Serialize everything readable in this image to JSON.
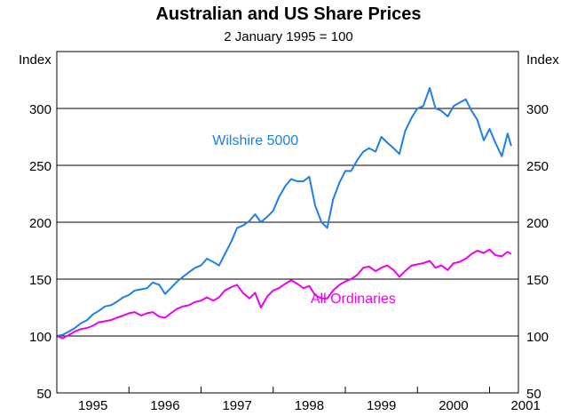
{
  "chart_data": {
    "type": "line",
    "title": "Australian and US Share Prices",
    "subtitle": "2 January 1995 = 100",
    "ylabel_left": "Index",
    "ylabel_right": "Index",
    "ylim": [
      50,
      350
    ],
    "yticks": [
      50,
      100,
      150,
      200,
      250,
      300
    ],
    "ytick_labels": [
      "50",
      "100",
      "150",
      "200",
      "250",
      "300"
    ],
    "x_range": [
      1995.0,
      2001.4
    ],
    "x_category_labels": [
      "1995",
      "1996",
      "1997",
      "1998",
      "1999",
      "2000",
      "2001"
    ],
    "grid": "horizontal",
    "series": [
      {
        "name": "Wilshire 5000",
        "color": "#1f7fe6",
        "points": [
          [
            1995.0,
            100
          ],
          [
            1995.08,
            101
          ],
          [
            1995.17,
            104
          ],
          [
            1995.25,
            107
          ],
          [
            1995.33,
            111
          ],
          [
            1995.42,
            114
          ],
          [
            1995.5,
            119
          ],
          [
            1995.58,
            122
          ],
          [
            1995.67,
            126
          ],
          [
            1995.75,
            127
          ],
          [
            1995.83,
            130
          ],
          [
            1995.92,
            134
          ],
          [
            1996.0,
            136
          ],
          [
            1996.08,
            140
          ],
          [
            1996.17,
            141
          ],
          [
            1996.25,
            142
          ],
          [
            1996.33,
            147
          ],
          [
            1996.42,
            145
          ],
          [
            1996.5,
            137
          ],
          [
            1996.58,
            142
          ],
          [
            1996.67,
            148
          ],
          [
            1996.75,
            152
          ],
          [
            1996.83,
            156
          ],
          [
            1996.92,
            160
          ],
          [
            1997.0,
            162
          ],
          [
            1997.08,
            168
          ],
          [
            1997.17,
            165
          ],
          [
            1997.25,
            162
          ],
          [
            1997.33,
            172
          ],
          [
            1997.42,
            183
          ],
          [
            1997.5,
            195
          ],
          [
            1997.58,
            197
          ],
          [
            1997.67,
            201
          ],
          [
            1997.75,
            207
          ],
          [
            1997.83,
            200
          ],
          [
            1997.92,
            205
          ],
          [
            1998.0,
            210
          ],
          [
            1998.08,
            222
          ],
          [
            1998.17,
            232
          ],
          [
            1998.25,
            238
          ],
          [
            1998.33,
            236
          ],
          [
            1998.42,
            236
          ],
          [
            1998.5,
            240
          ],
          [
            1998.58,
            215
          ],
          [
            1998.67,
            200
          ],
          [
            1998.75,
            195
          ],
          [
            1998.83,
            220
          ],
          [
            1998.92,
            235
          ],
          [
            1999.0,
            245
          ],
          [
            1999.08,
            245
          ],
          [
            1999.17,
            255
          ],
          [
            1999.25,
            262
          ],
          [
            1999.33,
            265
          ],
          [
            1999.42,
            262
          ],
          [
            1999.5,
            275
          ],
          [
            1999.58,
            270
          ],
          [
            1999.67,
            265
          ],
          [
            1999.75,
            260
          ],
          [
            1999.83,
            280
          ],
          [
            1999.92,
            292
          ],
          [
            2000.0,
            300
          ],
          [
            2000.08,
            302
          ],
          [
            2000.17,
            318
          ],
          [
            2000.25,
            300
          ],
          [
            2000.33,
            298
          ],
          [
            2000.42,
            293
          ],
          [
            2000.5,
            302
          ],
          [
            2000.58,
            305
          ],
          [
            2000.67,
            308
          ],
          [
            2000.75,
            298
          ],
          [
            2000.83,
            290
          ],
          [
            2000.92,
            272
          ],
          [
            2001.0,
            282
          ],
          [
            2001.08,
            270
          ],
          [
            2001.17,
            258
          ],
          [
            2001.25,
            278
          ],
          [
            2001.3,
            267
          ]
        ]
      },
      {
        "name": "All Ordinaries",
        "color": "#ee00ee",
        "points": [
          [
            1995.0,
            100
          ],
          [
            1995.08,
            98
          ],
          [
            1995.17,
            101
          ],
          [
            1995.25,
            104
          ],
          [
            1995.33,
            106
          ],
          [
            1995.42,
            107
          ],
          [
            1995.5,
            109
          ],
          [
            1995.58,
            112
          ],
          [
            1995.67,
            113
          ],
          [
            1995.75,
            114
          ],
          [
            1995.83,
            116
          ],
          [
            1995.92,
            118
          ],
          [
            1996.0,
            120
          ],
          [
            1996.08,
            121
          ],
          [
            1996.17,
            118
          ],
          [
            1996.25,
            120
          ],
          [
            1996.33,
            121
          ],
          [
            1996.42,
            117
          ],
          [
            1996.5,
            116
          ],
          [
            1996.58,
            120
          ],
          [
            1996.67,
            124
          ],
          [
            1996.75,
            126
          ],
          [
            1996.83,
            127
          ],
          [
            1996.92,
            130
          ],
          [
            1997.0,
            131
          ],
          [
            1997.08,
            134
          ],
          [
            1997.17,
            131
          ],
          [
            1997.25,
            134
          ],
          [
            1997.33,
            140
          ],
          [
            1997.42,
            143
          ],
          [
            1997.5,
            145
          ],
          [
            1997.58,
            138
          ],
          [
            1997.67,
            133
          ],
          [
            1997.75,
            138
          ],
          [
            1997.83,
            125
          ],
          [
            1997.92,
            135
          ],
          [
            1998.0,
            140
          ],
          [
            1998.08,
            142
          ],
          [
            1998.17,
            146
          ],
          [
            1998.25,
            149
          ],
          [
            1998.33,
            146
          ],
          [
            1998.42,
            142
          ],
          [
            1998.5,
            144
          ],
          [
            1998.58,
            136
          ],
          [
            1998.67,
            133
          ],
          [
            1998.75,
            133
          ],
          [
            1998.83,
            140
          ],
          [
            1998.92,
            145
          ],
          [
            1999.0,
            148
          ],
          [
            1999.08,
            150
          ],
          [
            1999.17,
            154
          ],
          [
            1999.25,
            160
          ],
          [
            1999.33,
            161
          ],
          [
            1999.42,
            157
          ],
          [
            1999.5,
            160
          ],
          [
            1999.58,
            162
          ],
          [
            1999.67,
            158
          ],
          [
            1999.75,
            152
          ],
          [
            1999.83,
            157
          ],
          [
            1999.92,
            162
          ],
          [
            2000.0,
            163
          ],
          [
            2000.08,
            164
          ],
          [
            2000.17,
            166
          ],
          [
            2000.25,
            160
          ],
          [
            2000.33,
            162
          ],
          [
            2000.42,
            158
          ],
          [
            2000.5,
            164
          ],
          [
            2000.58,
            165
          ],
          [
            2000.67,
            168
          ],
          [
            2000.75,
            172
          ],
          [
            2000.83,
            175
          ],
          [
            2000.92,
            173
          ],
          [
            2001.0,
            176
          ],
          [
            2001.08,
            171
          ],
          [
            2001.17,
            170
          ],
          [
            2001.25,
            174
          ],
          [
            2001.3,
            172
          ]
        ]
      }
    ],
    "annotations": [
      {
        "text": "Wilshire 5000",
        "series": "Wilshire 5000",
        "x": 1998.35,
        "y": 268,
        "anchor": "end"
      },
      {
        "text": "All Ordinaries",
        "series": "All Ordinaries",
        "x": 1999.7,
        "y": 129,
        "anchor": "end"
      }
    ]
  }
}
